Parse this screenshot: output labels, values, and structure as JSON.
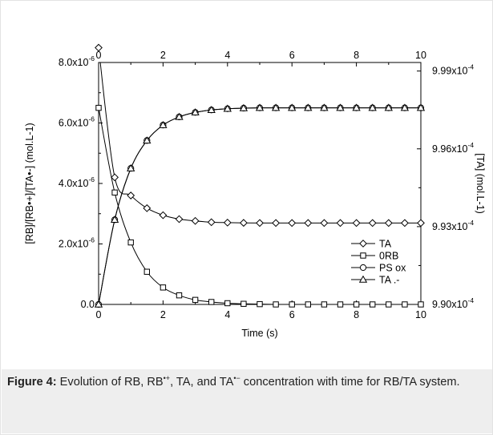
{
  "chart_data": {
    "type": "line",
    "xlabel": "Time (s)",
    "ylabel_left": "[RB]/[RB•+]/[TA•-] (mol.L-1)",
    "ylabel_right": "[TA] (mol.L-1)",
    "xlim": [
      0,
      10
    ],
    "ylim_left": [
      0,
      8e-06
    ],
    "ylim_right": [
      0.00099,
      0.00099933
    ],
    "x_ticks": [
      "0",
      "2",
      "4",
      "6",
      "8",
      "10"
    ],
    "y_left_ticks": [
      {
        "mant": "0.0",
        "exp": ""
      },
      {
        "mant": "2.0x10",
        "exp": "-6"
      },
      {
        "mant": "4.0x10",
        "exp": "-6"
      },
      {
        "mant": "6.0x10",
        "exp": "-6"
      },
      {
        "mant": "8.0x10",
        "exp": "-6"
      }
    ],
    "y_right_ticks": [
      {
        "mant": "9.90x10",
        "exp": "-4"
      },
      {
        "mant": "9.93x10",
        "exp": "-4"
      },
      {
        "mant": "9.96x10",
        "exp": "-4"
      },
      {
        "mant": "9.99x10",
        "exp": "-4"
      }
    ],
    "grid": false,
    "legend_position": "bottom-right",
    "series": [
      {
        "name": "TA",
        "marker": "diamond",
        "axis": "right",
        "x": [
          0,
          0.5,
          1,
          1.5,
          2,
          2.5,
          3,
          3.5,
          4,
          4.5,
          5,
          5.5,
          6,
          6.5,
          7,
          7.5,
          8,
          8.5,
          9,
          9.5,
          10
        ],
        "y": [
          0.0009999,
          0.0009949,
          0.0009942,
          0.000993712,
          0.00099344,
          0.00099329,
          0.00099322,
          0.00099317,
          0.000993155,
          0.000993145,
          0.00099314,
          0.00099314,
          0.00099314,
          0.00099314,
          0.00099314,
          0.00099314,
          0.00099314,
          0.00099314,
          0.00099314,
          0.00099314,
          0.00099314
        ]
      },
      {
        "name": "0RB",
        "marker": "square",
        "axis": "left",
        "x": [
          0,
          0.5,
          1,
          1.5,
          2,
          2.5,
          3,
          3.5,
          4,
          4.5,
          5,
          5.5,
          6,
          6.5,
          7,
          7.5,
          8,
          8.5,
          9,
          9.5,
          10
        ],
        "y": [
          6.5e-06,
          3.7e-06,
          2.05e-06,
          1.08e-06,
          5.6e-07,
          3e-07,
          1.5e-07,
          8e-08,
          4e-08,
          2e-08,
          1e-08,
          0,
          0,
          0,
          0,
          0,
          0,
          0,
          0,
          0,
          0
        ]
      },
      {
        "name": "PS ox",
        "marker": "circle",
        "axis": "left",
        "x": [
          0,
          0.5,
          1,
          1.5,
          2,
          2.5,
          3,
          3.5,
          4,
          4.5,
          5,
          5.5,
          6,
          6.5,
          7,
          7.5,
          8,
          8.5,
          9,
          9.5,
          10
        ],
        "y": [
          0,
          2.8e-06,
          4.5e-06,
          5.42e-06,
          5.93e-06,
          6.2e-06,
          6.35e-06,
          6.43e-06,
          6.47e-06,
          6.49e-06,
          6.5e-06,
          6.5e-06,
          6.5e-06,
          6.5e-06,
          6.5e-06,
          6.5e-06,
          6.5e-06,
          6.5e-06,
          6.5e-06,
          6.5e-06,
          6.5e-06
        ]
      },
      {
        "name": "TA .-",
        "marker": "triangle",
        "axis": "left",
        "x": [
          0,
          0.5,
          1,
          1.5,
          2,
          2.5,
          3,
          3.5,
          4,
          4.5,
          5,
          5.5,
          6,
          6.5,
          7,
          7.5,
          8,
          8.5,
          9,
          9.5,
          10
        ],
        "y": [
          0,
          2.8e-06,
          4.5e-06,
          5.42e-06,
          5.93e-06,
          6.2e-06,
          6.35e-06,
          6.43e-06,
          6.47e-06,
          6.49e-06,
          6.5e-06,
          6.5e-06,
          6.5e-06,
          6.5e-06,
          6.5e-06,
          6.5e-06,
          6.5e-06,
          6.5e-06,
          6.5e-06,
          6.5e-06,
          6.5e-06
        ]
      }
    ]
  },
  "caption": {
    "label": "Figure 4:",
    "text_a": " Evolution of RB, RB",
    "sup_a": "•+",
    "text_b": ", TA, and TA",
    "sup_b": "•−",
    "text_c": " concentration with time for RB/TA system."
  },
  "colors": {
    "line": "#000000",
    "caption_background": "#eeeeee",
    "card_border": "#e3e3e3"
  }
}
